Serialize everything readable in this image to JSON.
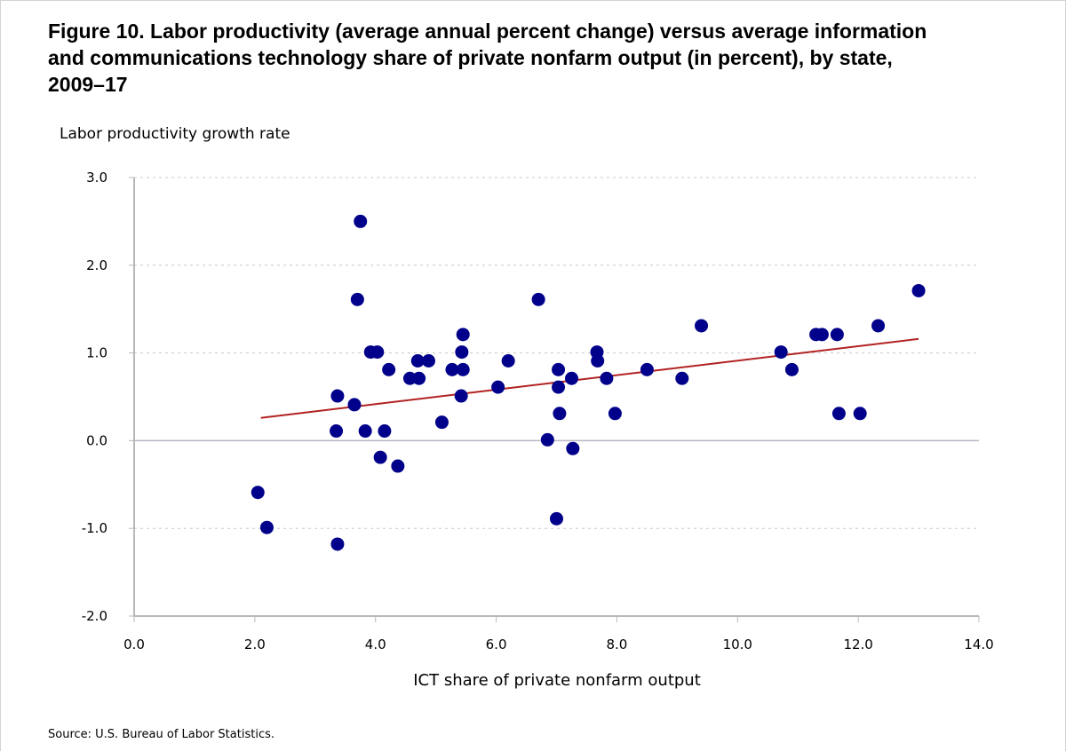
{
  "chart_data": {
    "type": "scatter",
    "title": "Figure 10. Labor productivity (average annual percent change) versus average information and communications technology share of private nonfarm output (in percent), by state, 2009–17",
    "xlabel": "ICT share of private nonfarm output",
    "ylabel": "Labor productivity growth rate",
    "source": "Source: U.S. Bureau of Labor Statistics.",
    "xlim": [
      0,
      14
    ],
    "ylim": [
      -2,
      3
    ],
    "x_ticks": [
      "0.0",
      "2.0",
      "4.0",
      "6.0",
      "8.0",
      "10.0",
      "12.0",
      "14.0"
    ],
    "y_ticks": [
      "3.0",
      "2.0",
      "1.0",
      "0.0",
      "-1.0",
      "-2.0"
    ],
    "grid": true,
    "point_color": "#00008b",
    "trendline_color": "#b22222",
    "trendline": {
      "x": [
        2.1,
        13.0
      ],
      "y": [
        0.26,
        1.16
      ]
    },
    "points": [
      {
        "x": 2.05,
        "y": -0.59
      },
      {
        "x": 2.2,
        "y": -0.99
      },
      {
        "x": 3.35,
        "y": 0.11
      },
      {
        "x": 3.37,
        "y": 0.51
      },
      {
        "x": 3.37,
        "y": -1.18
      },
      {
        "x": 3.65,
        "y": 0.41
      },
      {
        "x": 3.7,
        "y": 1.61
      },
      {
        "x": 3.75,
        "y": 2.5
      },
      {
        "x": 3.83,
        "y": 0.11
      },
      {
        "x": 3.92,
        "y": 1.01
      },
      {
        "x": 4.03,
        "y": 1.01
      },
      {
        "x": 4.08,
        "y": -0.19
      },
      {
        "x": 4.15,
        "y": 0.11
      },
      {
        "x": 4.22,
        "y": 0.81
      },
      {
        "x": 4.37,
        "y": -0.29
      },
      {
        "x": 4.57,
        "y": 0.71
      },
      {
        "x": 4.7,
        "y": 0.91
      },
      {
        "x": 4.72,
        "y": 0.71
      },
      {
        "x": 4.88,
        "y": 0.91
      },
      {
        "x": 5.1,
        "y": 0.21
      },
      {
        "x": 5.27,
        "y": 0.81
      },
      {
        "x": 5.42,
        "y": 0.51
      },
      {
        "x": 5.43,
        "y": 1.01
      },
      {
        "x": 5.45,
        "y": 1.21
      },
      {
        "x": 5.45,
        "y": 0.81
      },
      {
        "x": 6.03,
        "y": 0.61
      },
      {
        "x": 6.2,
        "y": 0.91
      },
      {
        "x": 6.7,
        "y": 1.61
      },
      {
        "x": 6.85,
        "y": 0.01
      },
      {
        "x": 7.0,
        "y": -0.89
      },
      {
        "x": 7.03,
        "y": 0.81
      },
      {
        "x": 7.03,
        "y": 0.61
      },
      {
        "x": 7.05,
        "y": 0.31
      },
      {
        "x": 7.25,
        "y": 0.71
      },
      {
        "x": 7.27,
        "y": -0.09
      },
      {
        "x": 7.67,
        "y": 1.01
      },
      {
        "x": 7.68,
        "y": 0.91
      },
      {
        "x": 7.83,
        "y": 0.71
      },
      {
        "x": 7.97,
        "y": 0.31
      },
      {
        "x": 8.5,
        "y": 0.81
      },
      {
        "x": 9.08,
        "y": 0.71
      },
      {
        "x": 9.4,
        "y": 1.31
      },
      {
        "x": 10.72,
        "y": 1.01
      },
      {
        "x": 10.9,
        "y": 0.81
      },
      {
        "x": 11.3,
        "y": 1.21
      },
      {
        "x": 11.4,
        "y": 1.21
      },
      {
        "x": 11.65,
        "y": 1.21
      },
      {
        "x": 11.68,
        "y": 0.31
      },
      {
        "x": 12.03,
        "y": 0.31
      },
      {
        "x": 12.33,
        "y": 1.31
      },
      {
        "x": 13.0,
        "y": 1.71
      }
    ]
  }
}
